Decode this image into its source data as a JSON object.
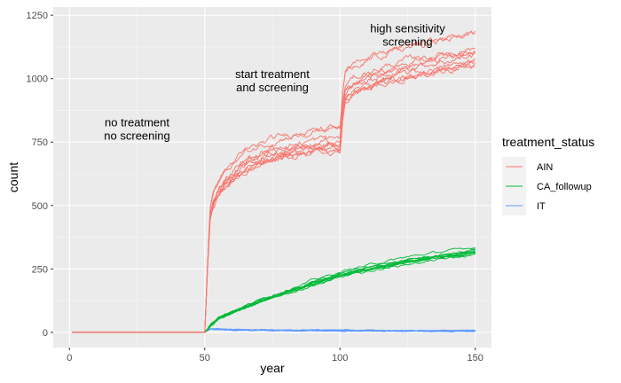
{
  "chart_data": {
    "type": "line",
    "xlabel": "year",
    "ylabel": "count",
    "xlim": [
      -6,
      156
    ],
    "ylim": [
      -60,
      1282
    ],
    "x_ticks": [
      0,
      50,
      100,
      150
    ],
    "y_ticks": [
      0,
      250,
      500,
      750,
      1000,
      1250
    ],
    "x_tick_labels": [
      "0",
      "50",
      "100",
      "150"
    ],
    "y_tick_labels": [
      "0",
      "250",
      "500",
      "750",
      "1000",
      "1250"
    ],
    "grid": true,
    "background": "#ebebeb",
    "legend": {
      "title": "treatment_status",
      "position": "right",
      "entries": [
        {
          "label": "AIN",
          "color": "#F8766D"
        },
        {
          "label": "CA_followup",
          "color": "#00BA38"
        },
        {
          "label": "IT",
          "color": "#619CFF"
        }
      ]
    },
    "annotations": [
      {
        "lines": [
          "no treatment",
          "no screening"
        ],
        "x": 25,
        "y": 760
      },
      {
        "lines": [
          "start treatment",
          "and screening"
        ],
        "x": 75,
        "y": 950
      },
      {
        "lines": [
          "high sensitivity",
          "screening"
        ],
        "x": 125,
        "y": 1130
      }
    ],
    "runs": 10,
    "series": [
      {
        "name": "AIN",
        "color": "#F8766D",
        "x": [
          1,
          50,
          51,
          52,
          53,
          55,
          58,
          62,
          66,
          70,
          75,
          80,
          85,
          90,
          95,
          99,
          100,
          101,
          102,
          105,
          110,
          115,
          120,
          125,
          130,
          135,
          140,
          145,
          150
        ],
        "y": [
          0,
          0,
          250,
          470,
          520,
          570,
          610,
          650,
          680,
          700,
          720,
          735,
          745,
          755,
          762,
          765,
          765,
          900,
          970,
          1000,
          1020,
          1040,
          1055,
          1070,
          1080,
          1090,
          1100,
          1110,
          1120
        ]
      },
      {
        "name": "CA_followup",
        "color": "#00BA38",
        "x": [
          1,
          50,
          51,
          52,
          55,
          60,
          65,
          70,
          75,
          80,
          85,
          90,
          95,
          100,
          105,
          110,
          115,
          120,
          125,
          130,
          135,
          140,
          145,
          150
        ],
        "y": [
          0,
          0,
          10,
          25,
          55,
          80,
          100,
          120,
          140,
          160,
          175,
          195,
          210,
          225,
          240,
          250,
          262,
          272,
          282,
          290,
          298,
          305,
          312,
          320
        ]
      },
      {
        "name": "IT",
        "color": "#619CFF",
        "x": [
          1,
          50,
          51,
          52,
          55,
          60,
          70,
          80,
          90,
          100,
          110,
          120,
          130,
          140,
          150
        ],
        "y": [
          0,
          0,
          8,
          12,
          12,
          10,
          9,
          8,
          8,
          7,
          7,
          6,
          6,
          6,
          6
        ]
      }
    ]
  }
}
